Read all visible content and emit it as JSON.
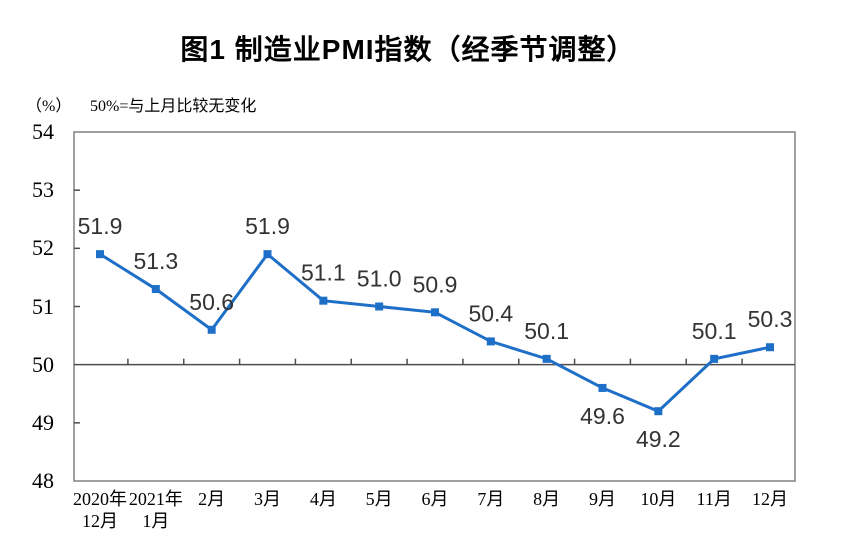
{
  "page": {
    "background_color": "#ffffff"
  },
  "chart_data": {
    "type": "line",
    "title": "图1 制造业PMI指数（经季节调整）",
    "unit_label": "（%）",
    "reference_note": "50%=与上月比较无变化",
    "categories": [
      "2020年\n12月",
      "2021年\n1月",
      "2月",
      "3月",
      "4月",
      "5月",
      "6月",
      "7月",
      "8月",
      "9月",
      "10月",
      "11月",
      "12月"
    ],
    "values": [
      51.9,
      51.3,
      50.6,
      51.9,
      51.1,
      51.0,
      50.9,
      50.4,
      50.1,
      49.6,
      49.2,
      50.1,
      50.3
    ],
    "data_label_positions": [
      "above",
      "above",
      "above",
      "above",
      "above",
      "above",
      "above",
      "above",
      "above",
      "below",
      "below",
      "above",
      "above"
    ],
    "y_ticks": [
      48,
      49,
      50,
      51,
      52,
      53,
      54
    ],
    "ylim": [
      48,
      54
    ],
    "reference_line": 50,
    "line_color": "#1E6FC8",
    "marker": "square",
    "grid": false,
    "legend": false,
    "xlabel": "",
    "ylabel": "（%）",
    "colors": {
      "border": "#808080",
      "axis": "#4D4D4D",
      "reference": "#4D4D4D",
      "data_label": "#333333",
      "text": "#000000"
    }
  }
}
